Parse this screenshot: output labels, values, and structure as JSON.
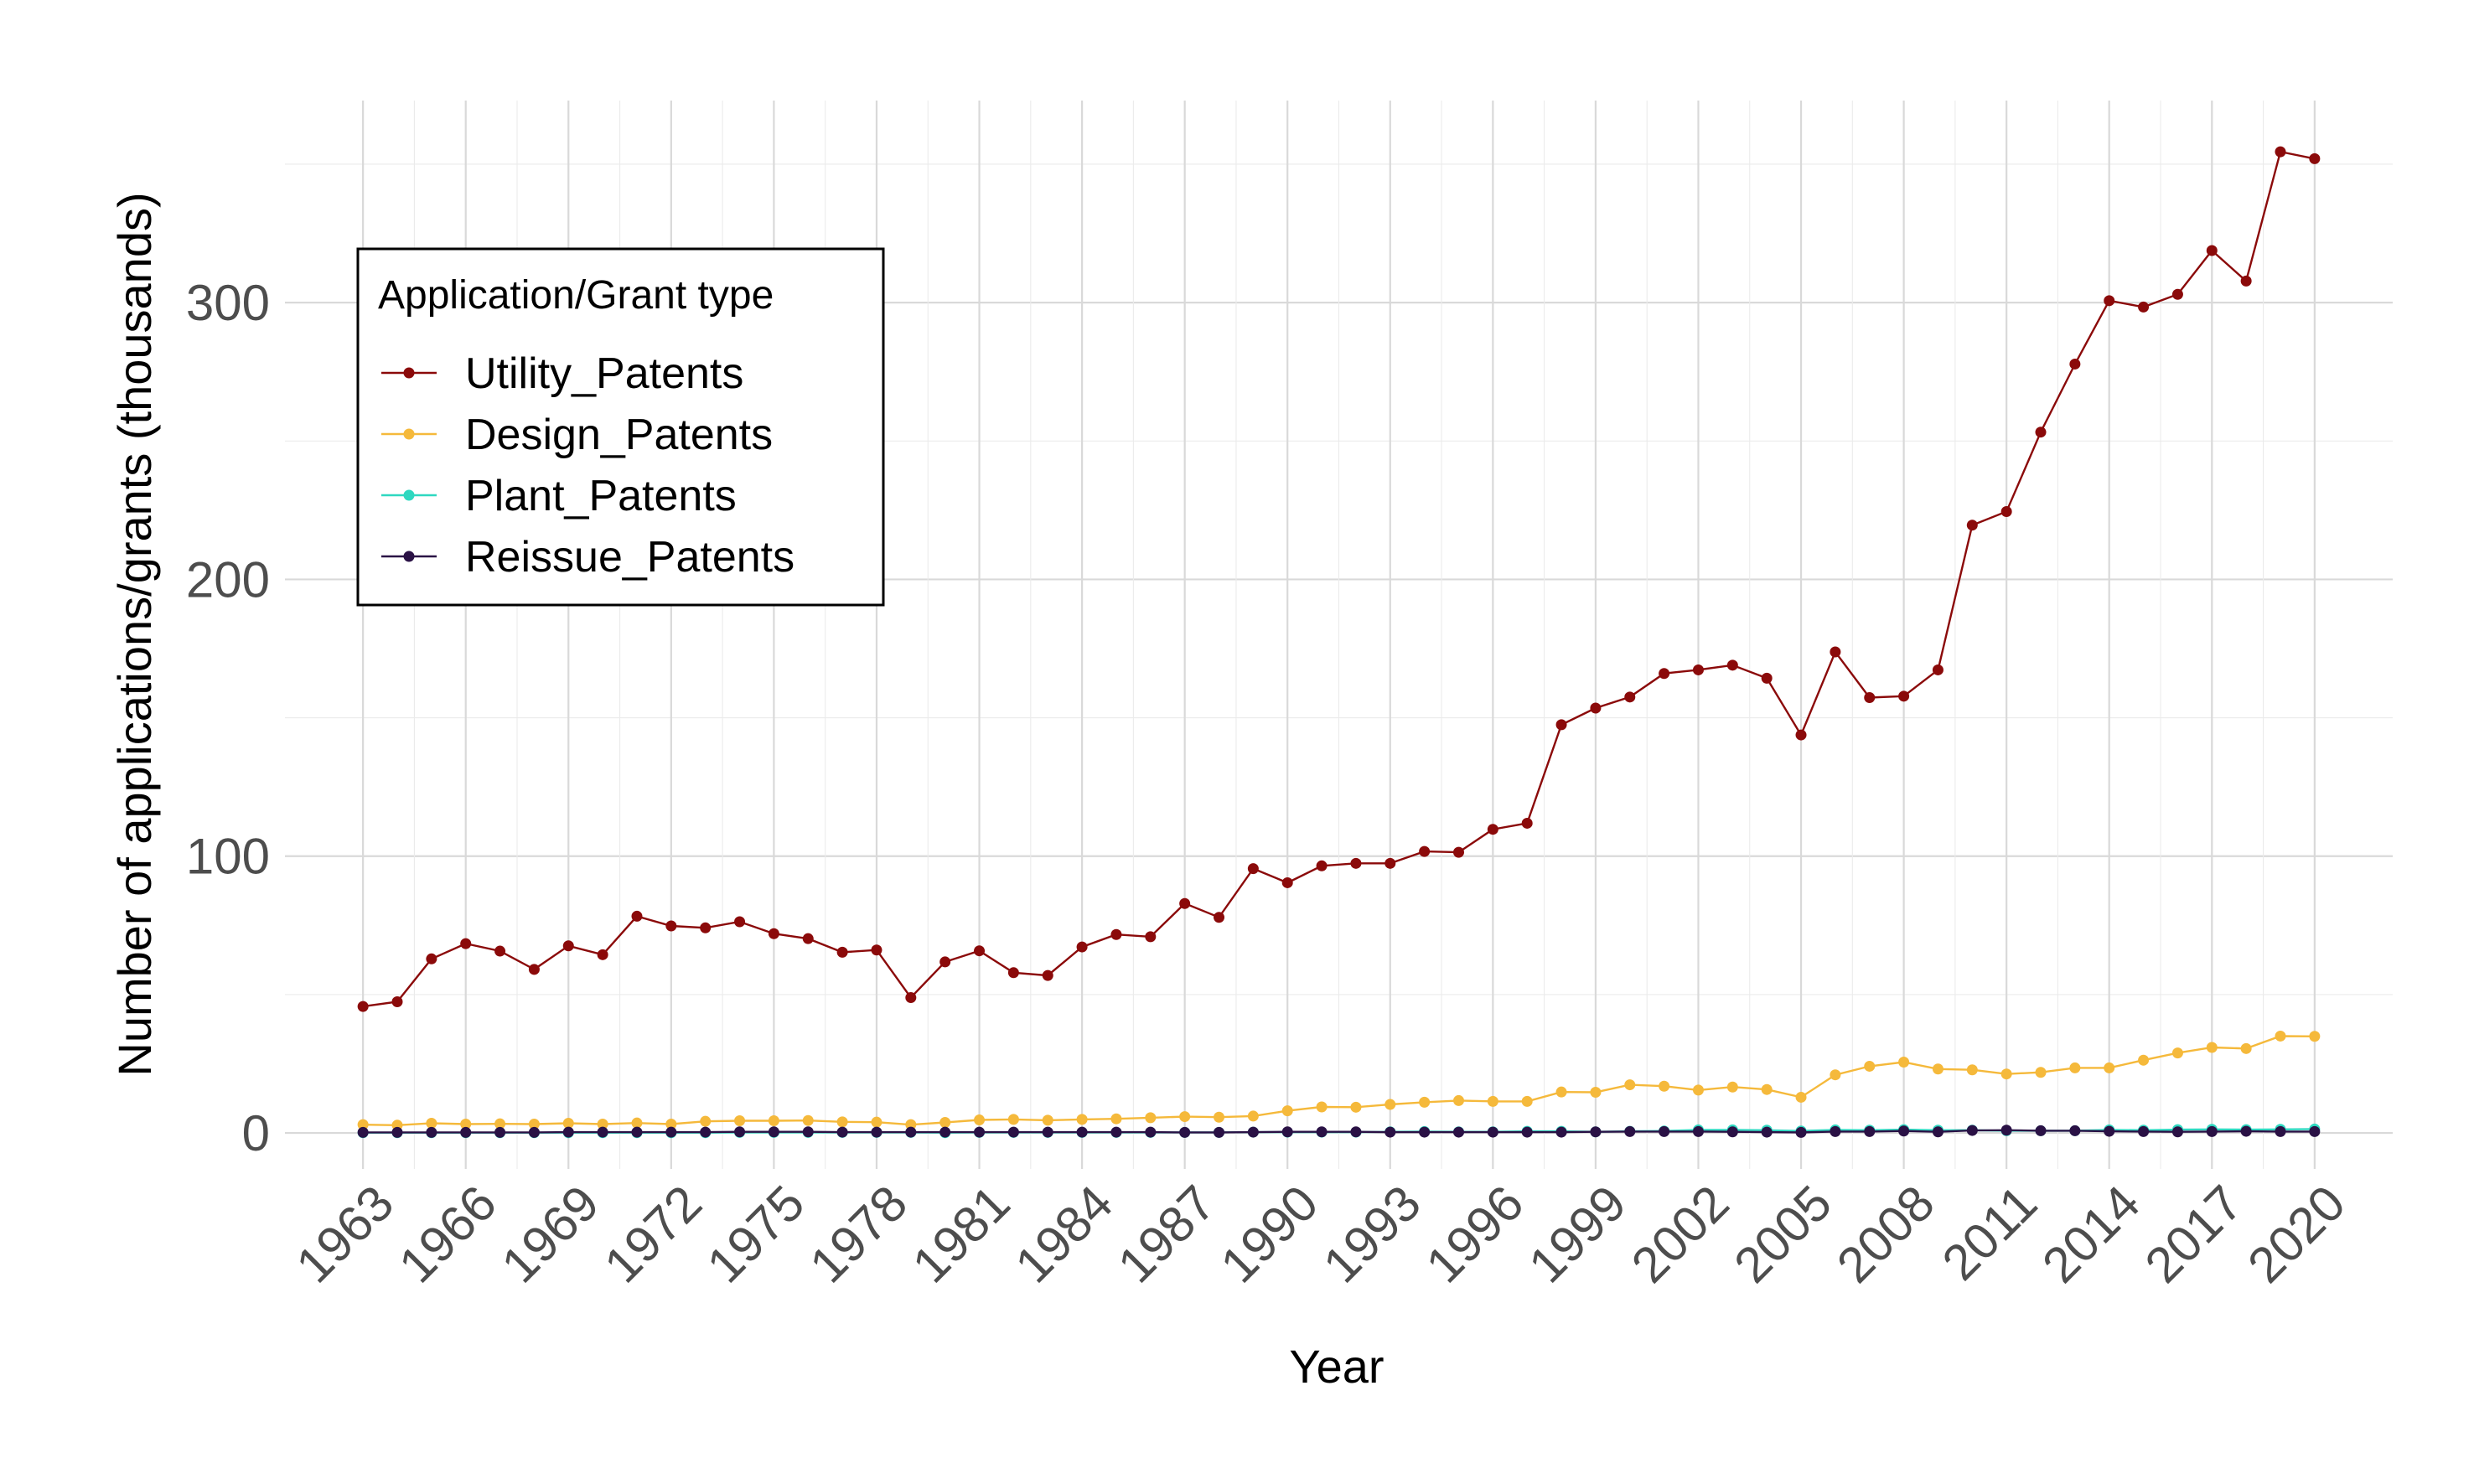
{
  "chart_data": {
    "type": "line",
    "xlabel": "Year",
    "ylabel": "Number of applications/grants (thousands)",
    "ylim": [
      -13,
      373
    ],
    "yticks": [
      0,
      100,
      200,
      300
    ],
    "x_tick_labels": [
      "1963",
      "1966",
      "1969",
      "1972",
      "1975",
      "1978",
      "1981",
      "1984",
      "1987",
      "1990",
      "1993",
      "1996",
      "1999",
      "2002",
      "2005",
      "2008",
      "2011",
      "2014",
      "2017",
      "2020"
    ],
    "grid": true,
    "legend": {
      "title": "Application/Grant type",
      "placement": "top-left"
    },
    "x": [
      1963,
      1964,
      1965,
      1966,
      1967,
      1968,
      1969,
      1970,
      1971,
      1972,
      1973,
      1974,
      1975,
      1976,
      1977,
      1978,
      1979,
      1980,
      1981,
      1982,
      1983,
      1984,
      1985,
      1986,
      1987,
      1988,
      1989,
      1990,
      1991,
      1992,
      1993,
      1994,
      1995,
      1996,
      1997,
      1998,
      1999,
      2000,
      2001,
      2002,
      2003,
      2004,
      2005,
      2006,
      2007,
      2008,
      2009,
      2010,
      2011,
      2012,
      2013,
      2014,
      2015,
      2016,
      2017,
      2018,
      2019,
      2020
    ],
    "series": [
      {
        "name": "Utility_Patents",
        "color": "#8b0a0a",
        "values": [
          45.7,
          47.4,
          62.9,
          68.4,
          65.7,
          59.1,
          67.6,
          64.4,
          78.3,
          74.8,
          74.1,
          76.3,
          72.0,
          70.2,
          65.3,
          66.1,
          48.9,
          61.8,
          65.8,
          57.9,
          56.9,
          67.2,
          71.7,
          70.9,
          82.9,
          77.9,
          95.5,
          90.4,
          96.5,
          97.4,
          97.4,
          101.7,
          101.4,
          109.7,
          111.9,
          147.5,
          153.5,
          157.5,
          166.0,
          167.3,
          169.0,
          164.3,
          143.8,
          173.8,
          157.3,
          157.8,
          167.3,
          219.6,
          224.5,
          253.2,
          277.8,
          300.7,
          298.4,
          303.0,
          318.8,
          307.8,
          354.5,
          352.0
        ]
      },
      {
        "name": "Design_Patents",
        "color": "#f5b93b",
        "values": [
          3.0,
          2.8,
          3.5,
          3.2,
          3.3,
          3.2,
          3.5,
          3.2,
          3.6,
          3.2,
          4.2,
          4.4,
          4.4,
          4.5,
          4.0,
          3.9,
          3.0,
          3.8,
          4.7,
          4.9,
          4.6,
          4.9,
          5.1,
          5.5,
          5.9,
          5.7,
          6.1,
          8.0,
          9.4,
          9.3,
          10.3,
          11.1,
          11.7,
          11.4,
          11.4,
          14.8,
          14.7,
          17.4,
          16.9,
          15.5,
          16.6,
          15.7,
          12.9,
          21.0,
          24.1,
          25.6,
          23.1,
          22.8,
          21.3,
          21.9,
          23.5,
          23.5,
          26.3,
          28.9,
          30.9,
          30.5,
          35.0,
          34.9
        ]
      },
      {
        "name": "Plant_Patents",
        "color": "#2ed8c0",
        "values": [
          0.1,
          0.1,
          0.1,
          0.1,
          0.1,
          0.1,
          0.1,
          0.1,
          0.1,
          0.1,
          0.1,
          0.2,
          0.2,
          0.2,
          0.2,
          0.2,
          0.2,
          0.1,
          0.2,
          0.2,
          0.2,
          0.2,
          0.2,
          0.2,
          0.2,
          0.2,
          0.3,
          0.3,
          0.3,
          0.3,
          0.4,
          0.5,
          0.4,
          0.4,
          0.6,
          0.6,
          0.4,
          0.6,
          0.7,
          1.1,
          1.1,
          1.0,
          0.7,
          1.1,
          1.0,
          1.2,
          1.0,
          1.0,
          0.8,
          0.8,
          0.8,
          1.1,
          1.0,
          1.2,
          1.3,
          1.2,
          1.3,
          1.4
        ]
      },
      {
        "name": "Reissue_Patents",
        "color": "#2a1145",
        "values": [
          0.2,
          0.2,
          0.2,
          0.2,
          0.2,
          0.2,
          0.3,
          0.3,
          0.3,
          0.3,
          0.3,
          0.4,
          0.4,
          0.4,
          0.3,
          0.3,
          0.3,
          0.3,
          0.3,
          0.3,
          0.3,
          0.3,
          0.3,
          0.3,
          0.2,
          0.2,
          0.3,
          0.4,
          0.4,
          0.4,
          0.3,
          0.3,
          0.3,
          0.3,
          0.3,
          0.3,
          0.4,
          0.5,
          0.5,
          0.5,
          0.4,
          0.3,
          0.2,
          0.5,
          0.5,
          0.7,
          0.4,
          0.9,
          1.0,
          0.8,
          0.8,
          0.6,
          0.5,
          0.4,
          0.5,
          0.6,
          0.5,
          0.5
        ]
      }
    ]
  }
}
